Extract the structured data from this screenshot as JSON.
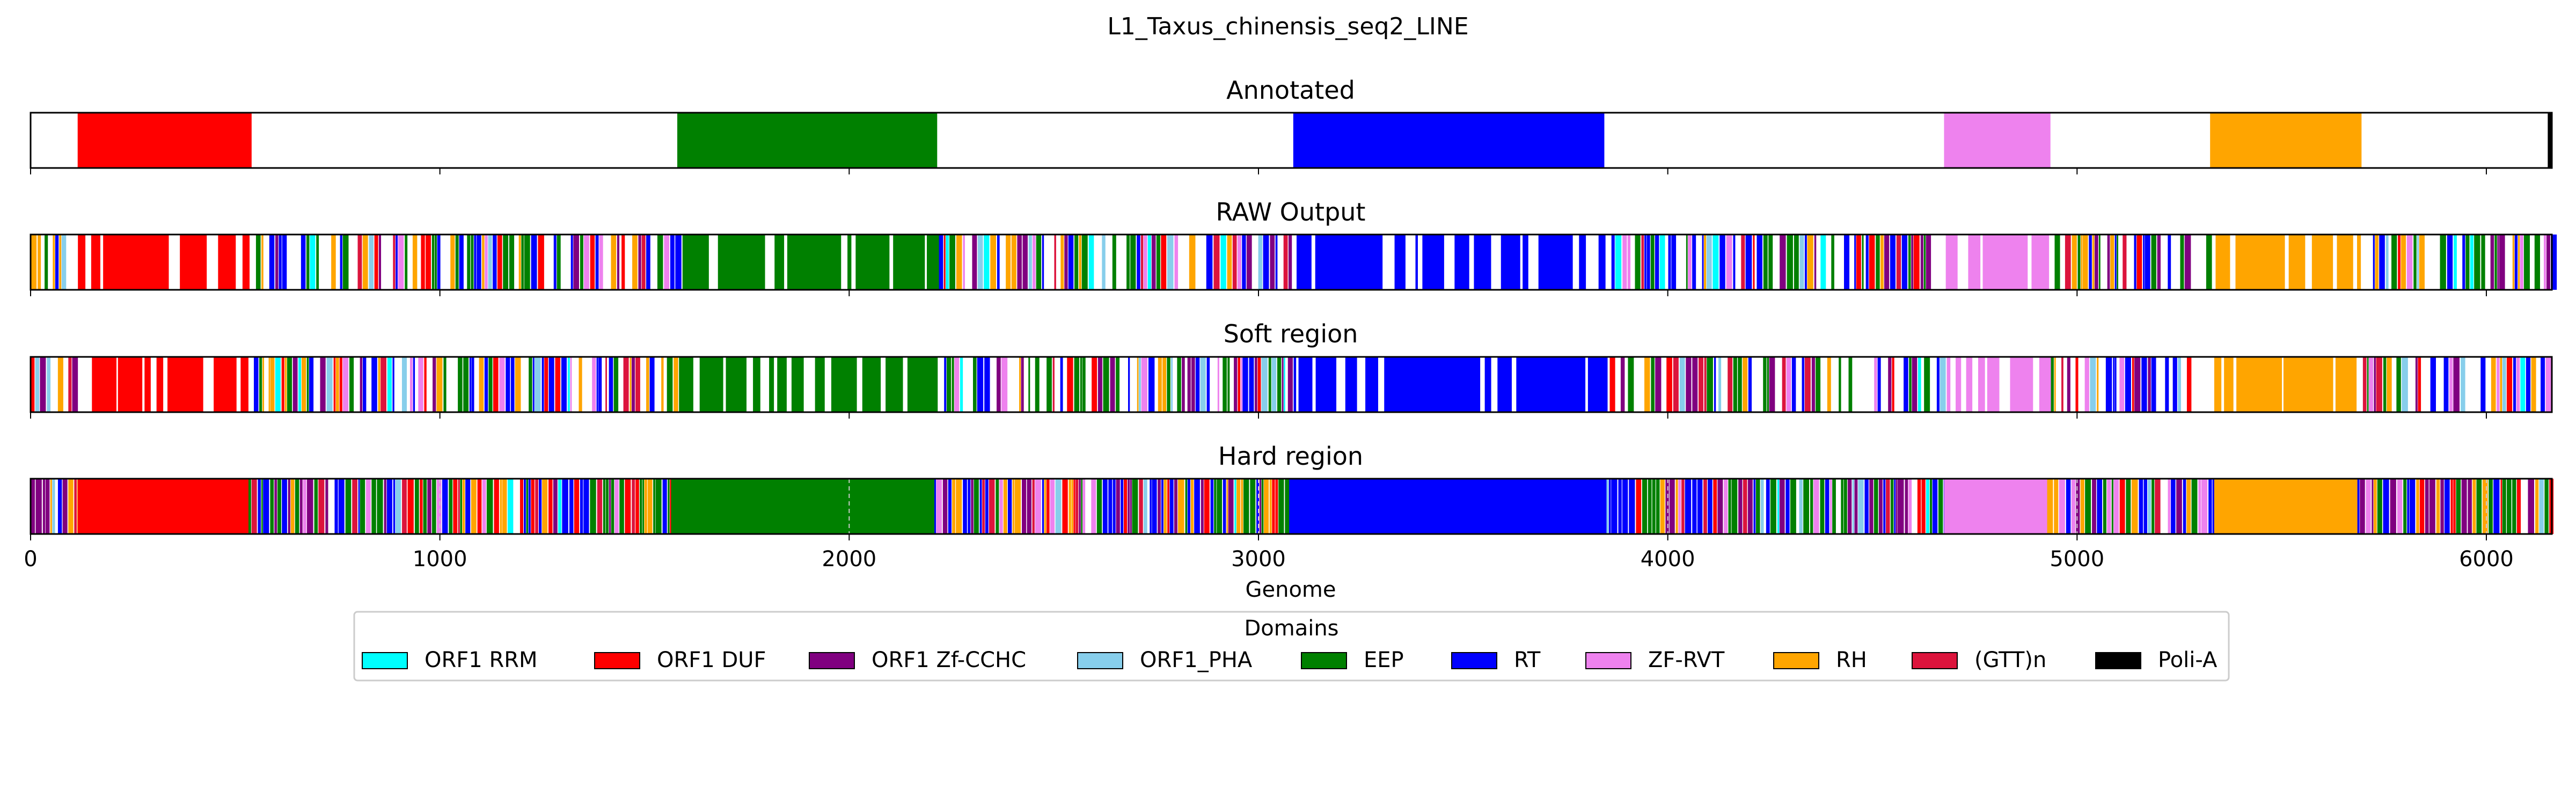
{
  "chart_data": {
    "type": "bar",
    "title": "L1_Taxus_chinensis_seq2_LINE",
    "xlabel": "Genome",
    "xlim": [
      0,
      6160
    ],
    "xticks": [
      0,
      1000,
      2000,
      3000,
      4000,
      5000,
      6000
    ],
    "xtick_labels": [
      "0",
      "1000",
      "2000",
      "3000",
      "4000",
      "5000",
      "6000"
    ],
    "panels": [
      {
        "title": "Annotated",
        "mode": "annotated"
      },
      {
        "title": "RAW Output",
        "mode": "raw"
      },
      {
        "title": "Soft region",
        "mode": "soft"
      },
      {
        "title": "Hard region",
        "mode": "hard"
      }
    ],
    "annotated_segments": [
      {
        "domain": "ORF1 DUF",
        "start": 115,
        "end": 540
      },
      {
        "domain": "EEP",
        "start": 1580,
        "end": 2215
      },
      {
        "domain": "RT",
        "start": 3085,
        "end": 3845
      },
      {
        "domain": "ZF-RVT",
        "start": 4675,
        "end": 4935
      },
      {
        "domain": "RH",
        "start": 5325,
        "end": 5695
      },
      {
        "domain": "Poli-A",
        "start": 6150,
        "end": 6160
      }
    ],
    "hard_segments": [
      {
        "domain": "ORF1 DUF",
        "start": 115,
        "end": 530
      },
      {
        "domain": "EEP",
        "start": 1565,
        "end": 2205
      },
      {
        "domain": "RT",
        "start": 3075,
        "end": 3835
      },
      {
        "domain": "ZF-RVT",
        "start": 4675,
        "end": 4920
      },
      {
        "domain": "RH",
        "start": 5335,
        "end": 5680
      }
    ],
    "legend": {
      "title": "Domains",
      "position": "bottom-center",
      "entries": [
        {
          "label": "ORF1 RRM",
          "color": "#00ffff"
        },
        {
          "label": "ORF1 DUF",
          "color": "#ff0000"
        },
        {
          "label": "ORF1 Zf-CCHC",
          "color": "#800080"
        },
        {
          "label": "ORF1_PHA",
          "color": "#87ceeb"
        },
        {
          "label": "EEP",
          "color": "#008000"
        },
        {
          "label": "RT",
          "color": "#0000ff"
        },
        {
          "label": "ZF-RVT",
          "color": "#ee82ee"
        },
        {
          "label": "RH",
          "color": "#ffa500"
        },
        {
          "label": "(GTT)n",
          "color": "#dc143c"
        },
        {
          "label": "Poli-A",
          "color": "#000000"
        }
      ]
    }
  }
}
